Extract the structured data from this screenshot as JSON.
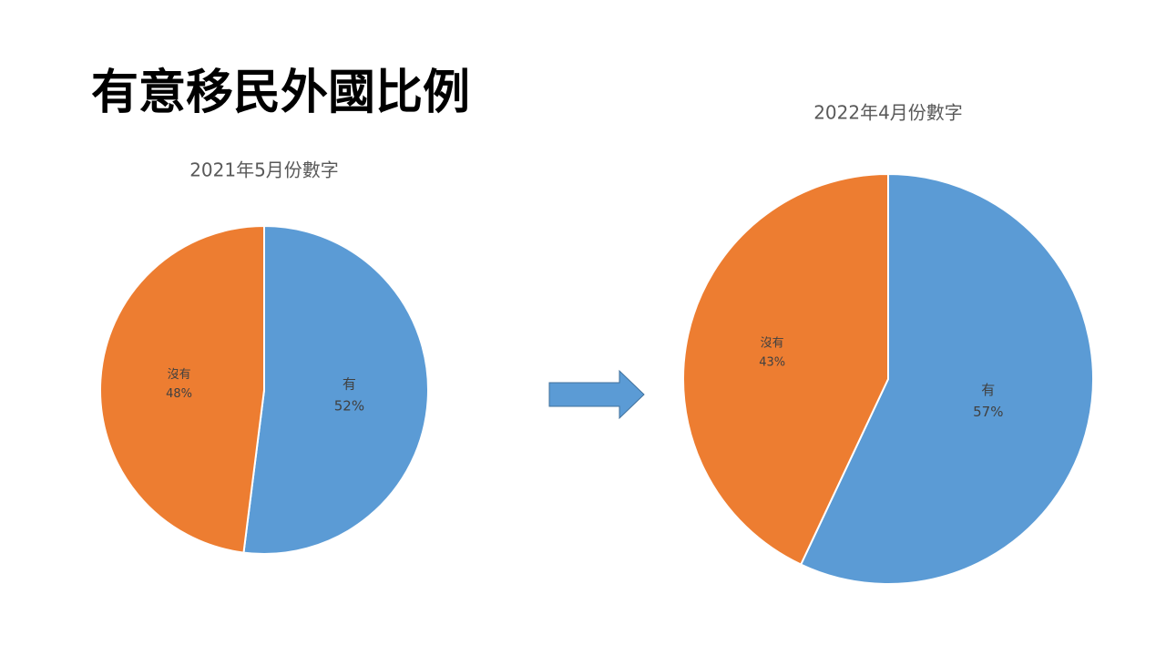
{
  "title": "有意移民外國比例",
  "chart_data": [
    {
      "type": "pie",
      "title": "2021年5月份數字",
      "categories": [
        "有",
        "沒有"
      ],
      "values": [
        52,
        48
      ],
      "value_labels": [
        "52%",
        "48%"
      ],
      "colors": [
        "#5b9bd5",
        "#ed7d31"
      ]
    },
    {
      "type": "pie",
      "title": "2022年4月份數字",
      "categories": [
        "有",
        "沒有"
      ],
      "values": [
        57,
        43
      ],
      "value_labels": [
        "57%",
        "43%"
      ],
      "colors": [
        "#5b9bd5",
        "#ed7d31"
      ]
    }
  ]
}
